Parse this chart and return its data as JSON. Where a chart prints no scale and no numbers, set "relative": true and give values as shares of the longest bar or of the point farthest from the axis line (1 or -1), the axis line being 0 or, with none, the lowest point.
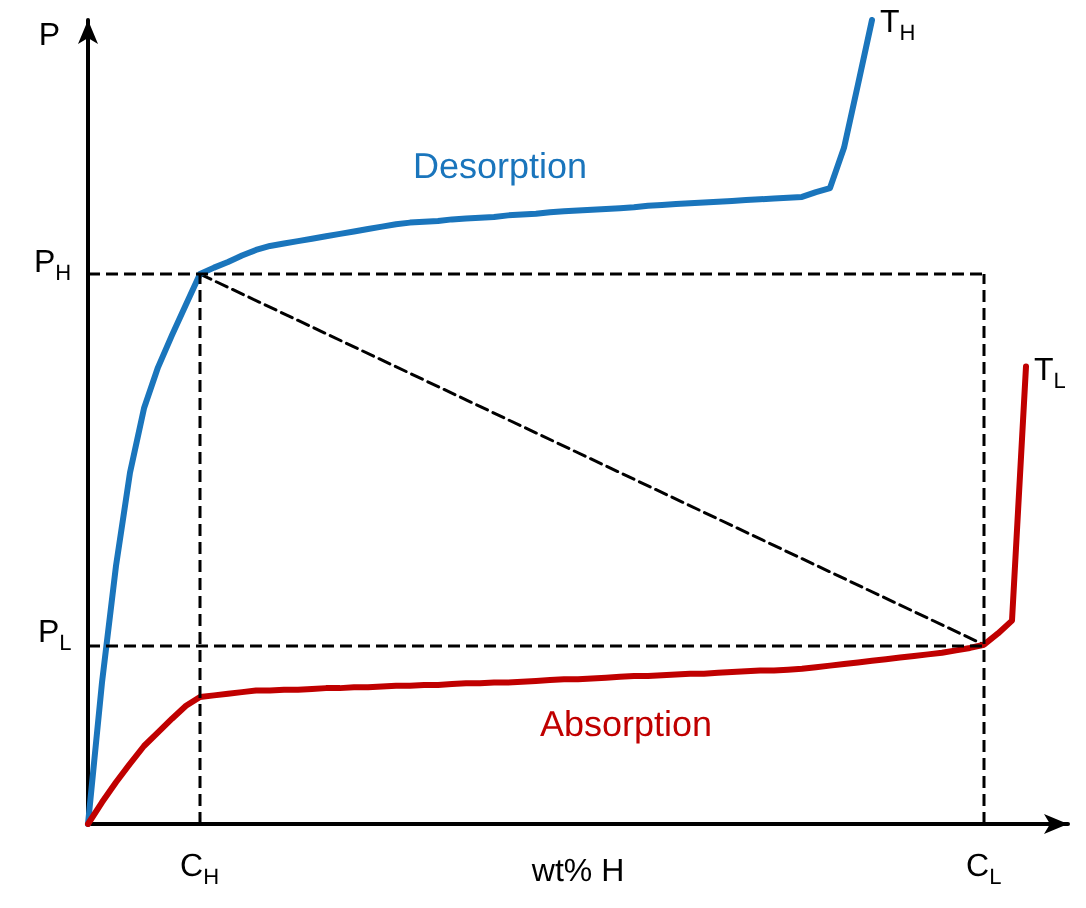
{
  "chart_data": {
    "type": "line",
    "relative": true,
    "xlabel": "wt% H",
    "ylabel": "P",
    "categories": [
      null,
      null,
      null,
      null,
      null,
      null,
      null,
      null,
      "C$_{H}$",
      null,
      null,
      null,
      null,
      null,
      null,
      null,
      null,
      null,
      null,
      null,
      null,
      null,
      null,
      null,
      null,
      null,
      null,
      null,
      null,
      null,
      null,
      null,
      null,
      null,
      null,
      null,
      null,
      null,
      null,
      null,
      null,
      null,
      null,
      null,
      null,
      null,
      null,
      null,
      null,
      null,
      null,
      null,
      null,
      null,
      null,
      null,
      null,
      null,
      null,
      null,
      null,
      null,
      null,
      null,
      "C$_{L}$",
      null,
      null,
      null,
      null,
      null,
      null
    ],
    "grid": false,
    "marker": "none",
    "line_style": "solid",
    "series": [
      {
        "name": "T$_{H}$",
        "color": "#1a75bc",
        "values": [
          0,
          0.176,
          0.321,
          0.437,
          0.517,
          0.568,
          0.608,
          0.646,
          0.684,
          0.692,
          0.699,
          0.707,
          0.714,
          0.719,
          0.722,
          0.725,
          0.728,
          0.731,
          0.734,
          0.737,
          0.74,
          0.743,
          0.746,
          0.748,
          0.749,
          0.75,
          0.752,
          0.753,
          0.754,
          0.755,
          0.757,
          0.758,
          0.759,
          0.761,
          0.762,
          0.763,
          0.764,
          0.765,
          0.766,
          0.767,
          0.769,
          0.77,
          0.771,
          0.772,
          0.773,
          0.774,
          0.775,
          0.776,
          0.777,
          0.778,
          0.779,
          0.78,
          0.786,
          0.791,
          0.841,
          0.92,
          1,
          null,
          null,
          null,
          null,
          null,
          null,
          null,
          null,
          null,
          null,
          null,
          null,
          null,
          null
        ]
      },
      {
        "name": "T$_{L}$",
        "color": "#c00000",
        "values": [
          0,
          0.027,
          0.052,
          0.075,
          0.097,
          0.114,
          0.131,
          0.147,
          0.158,
          0.16,
          0.162,
          0.164,
          0.166,
          0.166,
          0.167,
          0.167,
          0.168,
          0.169,
          0.169,
          0.17,
          0.17,
          0.171,
          0.172,
          0.172,
          0.173,
          0.173,
          0.174,
          0.175,
          0.175,
          0.176,
          0.176,
          0.177,
          0.178,
          0.179,
          0.18,
          0.18,
          0.181,
          0.182,
          0.183,
          0.184,
          0.184,
          0.185,
          0.186,
          0.187,
          0.187,
          0.188,
          0.189,
          0.19,
          0.191,
          0.191,
          0.192,
          0.193,
          0.195,
          0.197,
          0.199,
          0.201,
          0.203,
          0.205,
          0.207,
          0.209,
          0.211,
          0.213,
          0.216,
          0.219,
          0.223,
          0.237,
          0.253,
          0.569,
          null,
          null,
          null
        ]
      },
      {
        "color": "#000000",
        "line_style": "dashed",
        "x": [
          "C$_{H}$",
          "C$_{L}$"
        ],
        "values": [
          0.684,
          0.223
        ]
      }
    ],
    "ref_lines": [
      {
        "axis": "y",
        "value": 0.684,
        "label": "P$_{H}$",
        "color": "#000000",
        "line_style": "dashed"
      },
      {
        "axis": "y",
        "value": 0.223,
        "label": "P$_{L}$",
        "color": "#000000",
        "line_style": "dashed"
      },
      {
        "axis": "x",
        "value": "C$_{H}$",
        "color": "#000000",
        "line_style": "dashed"
      },
      {
        "axis": "x",
        "value": "C$_{L}$",
        "color": "#000000",
        "line_style": "dashed"
      }
    ],
    "annotations": [
      "Desorption",
      "Absorption"
    ]
  }
}
